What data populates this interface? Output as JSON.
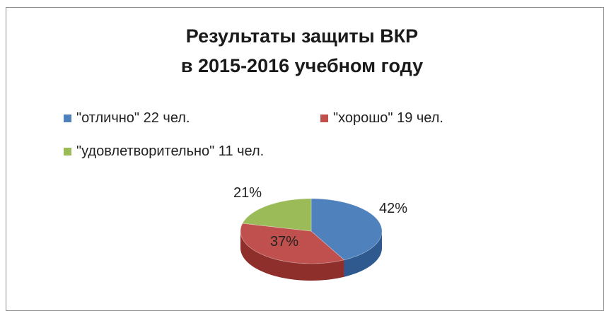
{
  "chart_data": {
    "type": "pie",
    "title_lines": [
      "Результаты защиты ВКР",
      "в 2015-2016 учебном году"
    ],
    "legend": [
      {
        "label": "\"отлично\" 22 чел.",
        "color": "#4f81bd"
      },
      {
        "label": "\"хорошо\" 19 чел.",
        "color": "#c0504d"
      },
      {
        "label": "\"удовлетворительно\" 11 чел.",
        "color": "#9bbb59"
      }
    ],
    "slices": [
      {
        "label": "\"отлично\" 22 чел.",
        "value": 22,
        "percent_label": "42%",
        "color": "#4f81bd",
        "side_color": "#2e5a8f"
      },
      {
        "label": "\"хорошо\" 19 чел.",
        "value": 19,
        "percent_label": "37%",
        "color": "#c0504d",
        "side_color": "#8e2f2c"
      },
      {
        "label": "\"удовлетворительно\" 11 чел.",
        "value": 11,
        "percent_label": "21%",
        "color": "#9bbb59",
        "side_color": "#6f8b3a"
      }
    ],
    "style": "3d-pie"
  }
}
